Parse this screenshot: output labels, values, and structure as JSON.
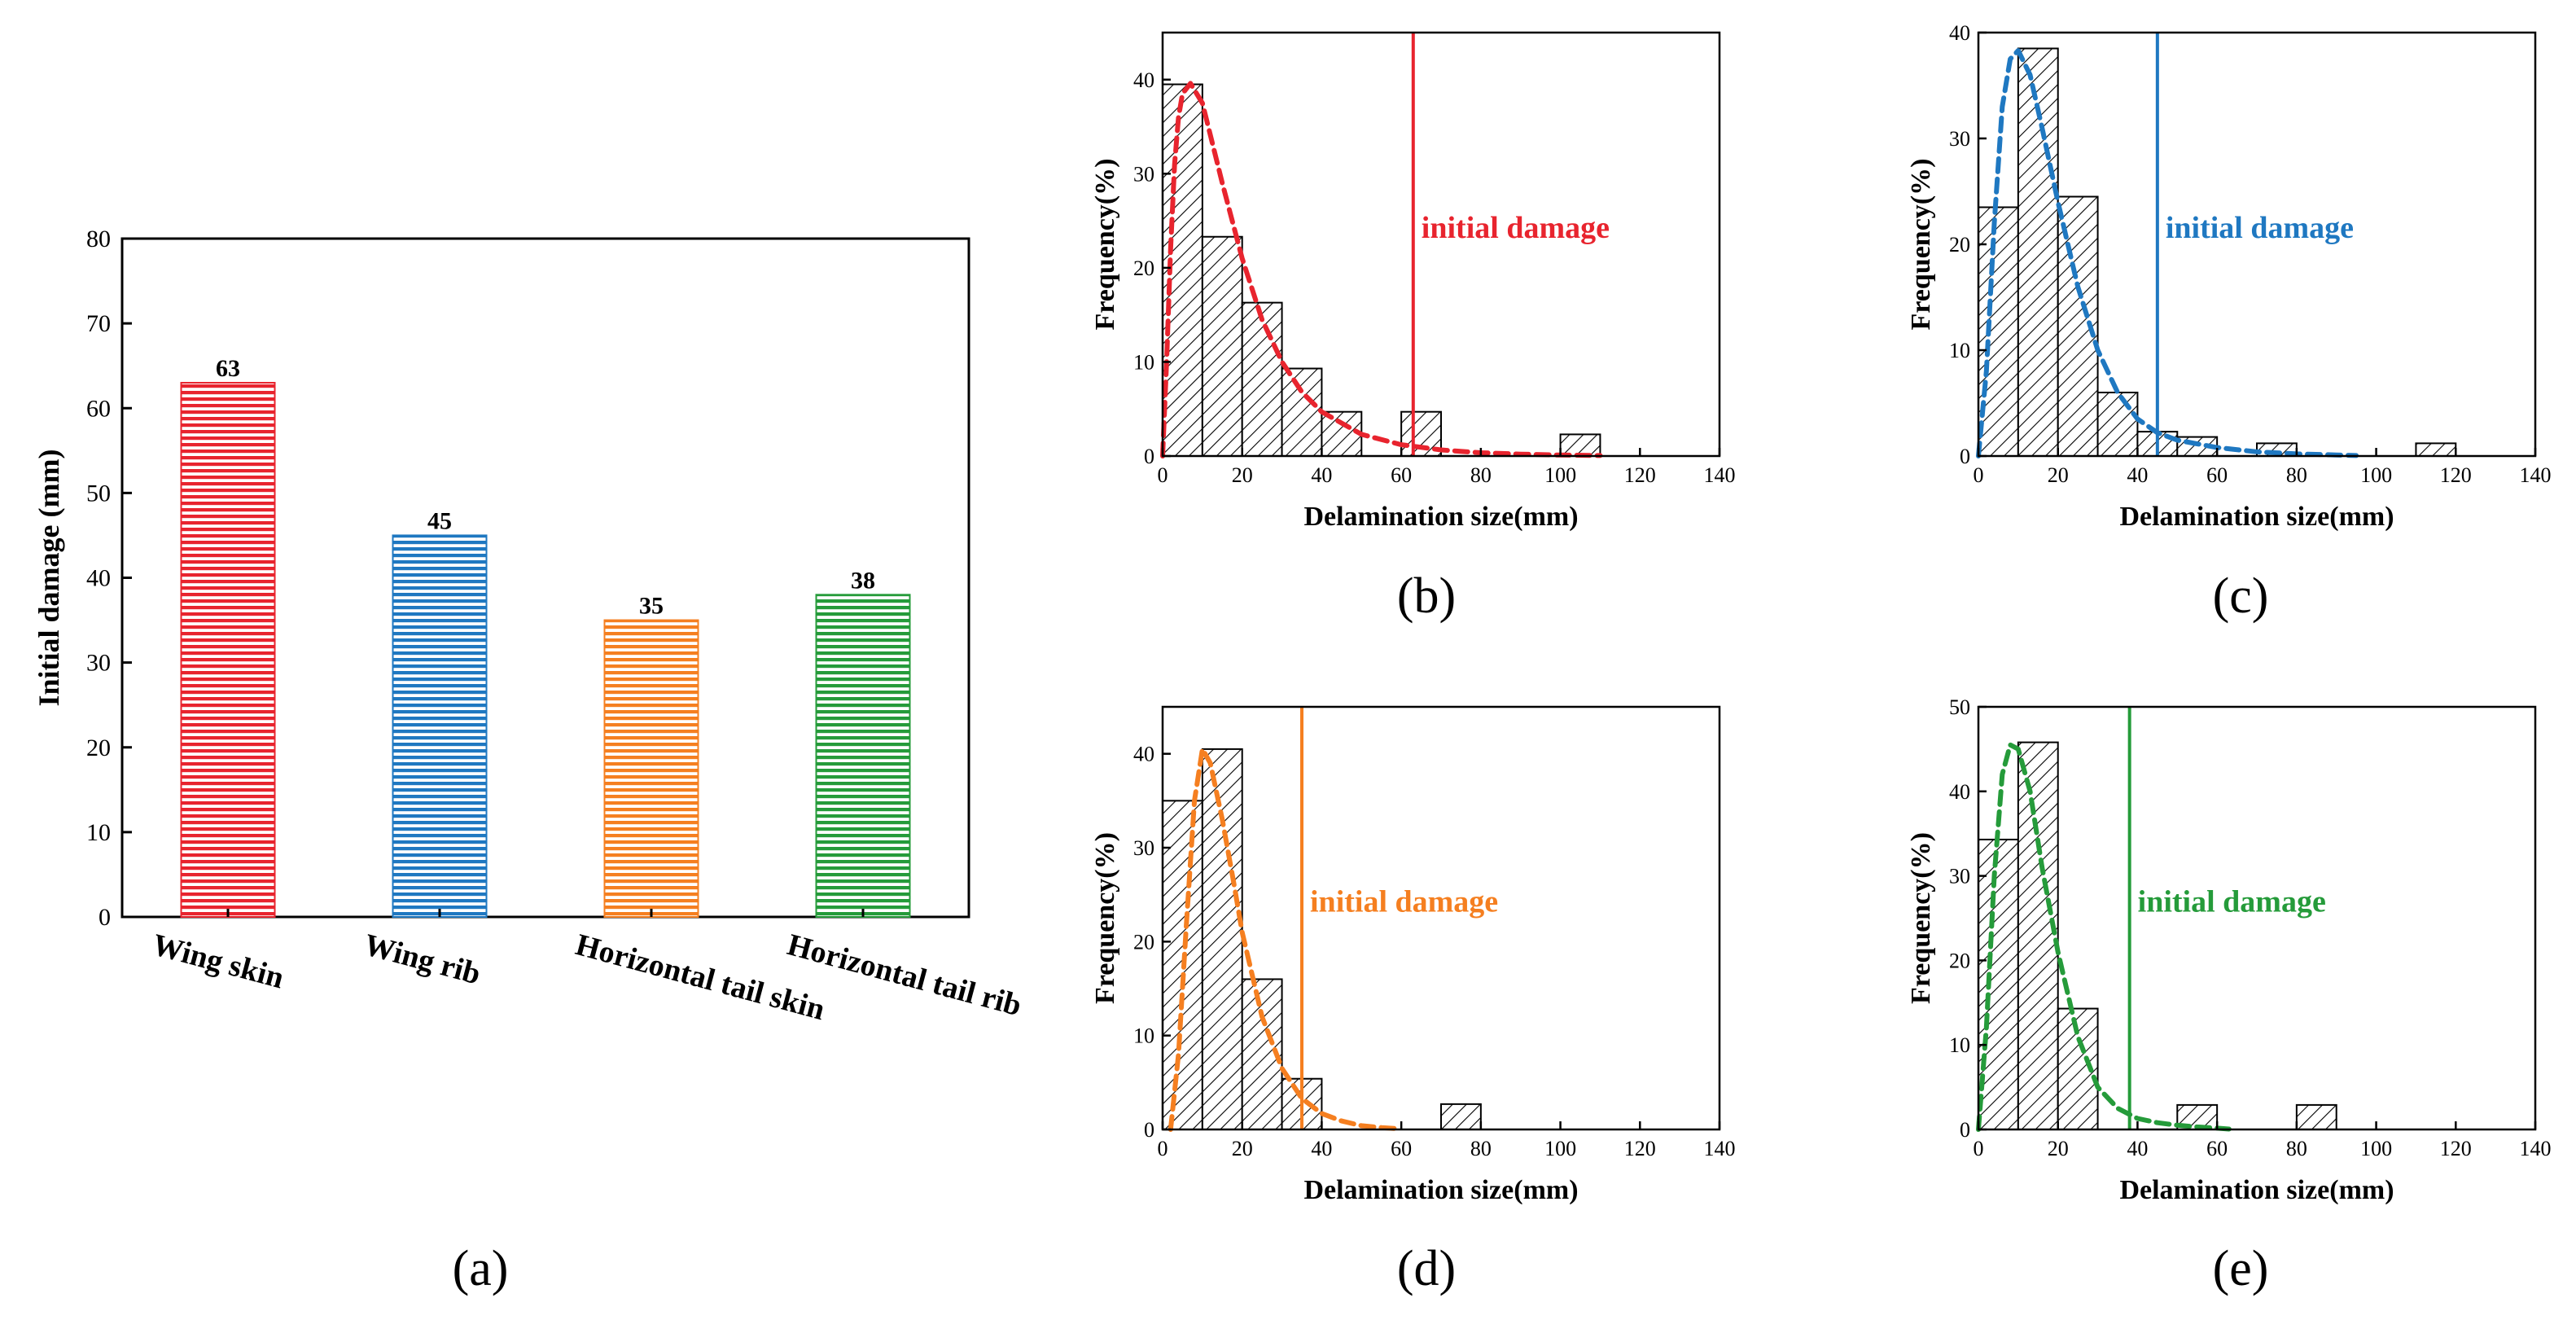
{
  "chart_data": [
    {
      "id": "a",
      "panel_label": "(a)",
      "type": "bar",
      "title": "",
      "xlabel": "",
      "ylabel": "Initial damage (mm)",
      "ylim": [
        0,
        80
      ],
      "yticks": [
        0,
        10,
        20,
        30,
        40,
        50,
        60,
        70,
        80
      ],
      "categories": [
        "Wing skin",
        "Wing rib",
        "Horizontal tail skin",
        "Horizontal tail rib"
      ],
      "values": [
        63,
        45,
        35,
        38
      ],
      "value_labels": [
        "63",
        "45",
        "35",
        "38"
      ],
      "colors": [
        "#e8242e",
        "#1f78c1",
        "#f57f20",
        "#259b3a"
      ],
      "pattern": "horizontal-lines",
      "grid": false
    },
    {
      "id": "b",
      "panel_label": "(b)",
      "type": "histogram",
      "xlabel": "Delamination size(mm)",
      "ylabel": "Frequency(%)",
      "xlim": [
        0,
        140
      ],
      "ylim": [
        0,
        45
      ],
      "xticks": [
        0,
        20,
        40,
        60,
        80,
        100,
        120,
        140
      ],
      "yticks": [
        0,
        10,
        20,
        30,
        40
      ],
      "bin_width": 10,
      "bins_x0": [
        0,
        10,
        20,
        30,
        40,
        60,
        100
      ],
      "frequencies": [
        39.5,
        23.3,
        16.3,
        9.3,
        4.7,
        4.7,
        2.3
      ],
      "fit_color": "#e8242e",
      "fit_curve": [
        [
          0,
          0
        ],
        [
          1,
          10
        ],
        [
          2,
          22
        ],
        [
          3,
          31
        ],
        [
          4,
          36
        ],
        [
          5,
          38.5
        ],
        [
          7,
          39.6
        ],
        [
          10,
          37.5
        ],
        [
          15,
          29
        ],
        [
          20,
          21
        ],
        [
          25,
          14.5
        ],
        [
          30,
          10
        ],
        [
          35,
          6.8
        ],
        [
          40,
          4.7
        ],
        [
          50,
          2.3
        ],
        [
          60,
          1.2
        ],
        [
          70,
          0.65
        ],
        [
          80,
          0.35
        ],
        [
          90,
          0.2
        ],
        [
          100,
          0.1
        ],
        [
          110,
          0.05
        ]
      ],
      "annotation": "initial damage",
      "initial_damage": 63
    },
    {
      "id": "c",
      "panel_label": "(c)",
      "type": "histogram",
      "xlabel": "Delamination size(mm)",
      "ylabel": "Frequency(%)",
      "xlim": [
        0,
        140
      ],
      "ylim": [
        0,
        40
      ],
      "xticks": [
        0,
        20,
        40,
        60,
        80,
        100,
        120,
        140
      ],
      "yticks": [
        0,
        10,
        20,
        30,
        40
      ],
      "bin_width": 10,
      "bins_x0": [
        0,
        10,
        20,
        30,
        40,
        50,
        70,
        110
      ],
      "frequencies": [
        23.5,
        38.5,
        24.5,
        6.0,
        2.3,
        1.8,
        1.2,
        1.2
      ],
      "fit_color": "#1f78c1",
      "fit_curve": [
        [
          0,
          0
        ],
        [
          2,
          8
        ],
        [
          4,
          22
        ],
        [
          6,
          33
        ],
        [
          8,
          37.5
        ],
        [
          10,
          38.3
        ],
        [
          13,
          36
        ],
        [
          16,
          31
        ],
        [
          20,
          24
        ],
        [
          25,
          16
        ],
        [
          30,
          10
        ],
        [
          35,
          6
        ],
        [
          40,
          3.5
        ],
        [
          45,
          2.2
        ],
        [
          50,
          1.5
        ],
        [
          60,
          0.8
        ],
        [
          70,
          0.4
        ],
        [
          80,
          0.2
        ],
        [
          90,
          0.1
        ],
        [
          95,
          0.05
        ]
      ],
      "annotation": "initial damage",
      "initial_damage": 45
    },
    {
      "id": "d",
      "panel_label": "(d)",
      "type": "histogram",
      "xlabel": "Delamination size(mm)",
      "ylabel": "Frequency(%)",
      "xlim": [
        0,
        140
      ],
      "ylim": [
        0,
        45
      ],
      "xticks": [
        0,
        20,
        40,
        60,
        80,
        100,
        120,
        140
      ],
      "yticks": [
        0,
        10,
        20,
        30,
        40
      ],
      "bin_width": 10,
      "bins_x0": [
        0,
        10,
        20,
        30,
        70
      ],
      "frequencies": [
        35.0,
        40.5,
        16.0,
        5.4,
        2.7
      ],
      "fit_color": "#f57f20",
      "fit_curve": [
        [
          2,
          0
        ],
        [
          4,
          8
        ],
        [
          6,
          22
        ],
        [
          8,
          35
        ],
        [
          10,
          40.5
        ],
        [
          12,
          39
        ],
        [
          15,
          33
        ],
        [
          18,
          26
        ],
        [
          20,
          21
        ],
        [
          25,
          12
        ],
        [
          30,
          6.5
        ],
        [
          35,
          3.3
        ],
        [
          40,
          1.7
        ],
        [
          45,
          0.9
        ],
        [
          50,
          0.4
        ],
        [
          55,
          0.2
        ],
        [
          60,
          0.05
        ]
      ],
      "annotation": "initial damage",
      "initial_damage": 35
    },
    {
      "id": "e",
      "panel_label": "(e)",
      "type": "histogram",
      "xlabel": "Delamination size(mm)",
      "ylabel": "Frequency(%)",
      "xlim": [
        0,
        140
      ],
      "ylim": [
        0,
        50
      ],
      "xticks": [
        0,
        20,
        40,
        60,
        80,
        100,
        120,
        140
      ],
      "yticks": [
        0,
        10,
        20,
        30,
        40,
        50
      ],
      "bin_width": 10,
      "bins_x0": [
        0,
        10,
        20,
        50,
        80
      ],
      "frequencies": [
        34.3,
        45.8,
        14.3,
        2.9,
        2.9
      ],
      "fit_color": "#259b3a",
      "fit_curve": [
        [
          0,
          0
        ],
        [
          2,
          12
        ],
        [
          4,
          30
        ],
        [
          6,
          42
        ],
        [
          8,
          45.5
        ],
        [
          10,
          45
        ],
        [
          13,
          40
        ],
        [
          16,
          31
        ],
        [
          20,
          21
        ],
        [
          25,
          11
        ],
        [
          30,
          5
        ],
        [
          35,
          2.5
        ],
        [
          40,
          1.3
        ],
        [
          45,
          0.8
        ],
        [
          50,
          0.5
        ],
        [
          55,
          0.3
        ],
        [
          60,
          0.15
        ],
        [
          63,
          0.05
        ]
      ],
      "annotation": "initial damage",
      "initial_damage": 38
    }
  ]
}
